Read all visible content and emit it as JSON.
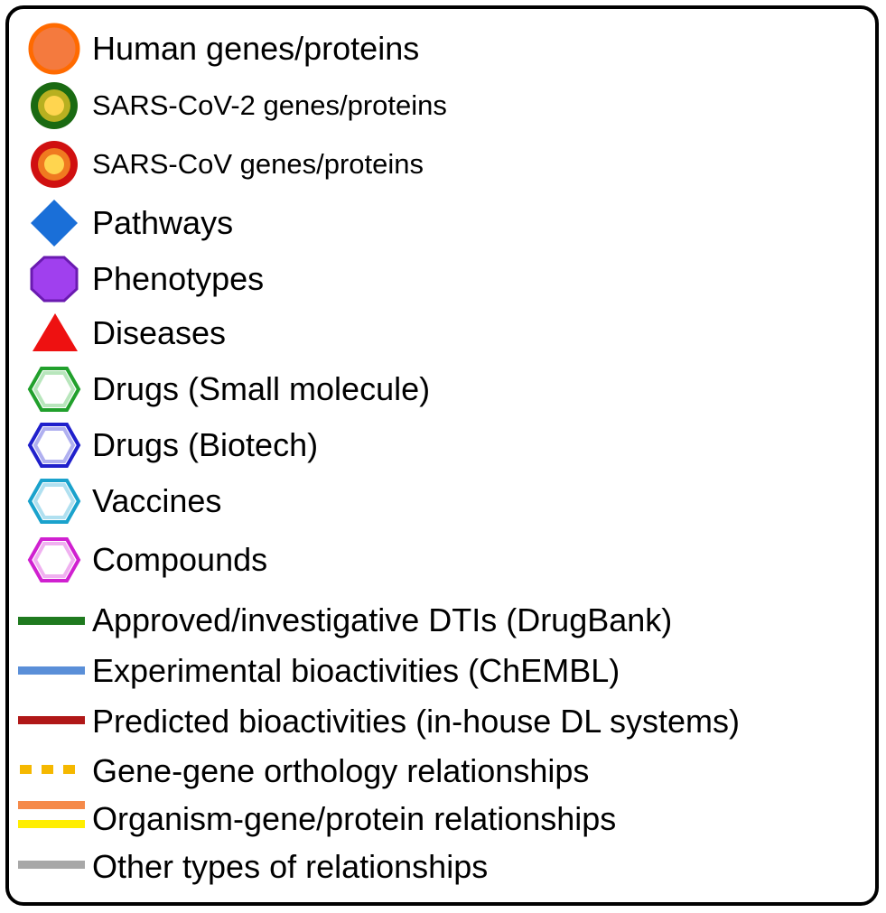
{
  "legend": {
    "nodes": [
      {
        "label": "Human genes/proteins",
        "icon": "orange-circle-icon",
        "colors": {
          "fill": "#f47a3e",
          "stroke": "#ff6a00"
        }
      },
      {
        "label": "SARS-CoV-2 genes/proteins",
        "icon": "green-ring-circle-icon",
        "colors": {
          "outer": "#1a6a12",
          "mid": "#b8b020",
          "inner": "#ffd54f"
        }
      },
      {
        "label": "SARS-CoV genes/proteins",
        "icon": "red-ring-circle-icon",
        "colors": {
          "outer": "#d01010",
          "mid": "#f07a20",
          "inner": "#ffd54f"
        }
      },
      {
        "label": "Pathways",
        "icon": "blue-diamond-icon",
        "colors": {
          "fill": "#1a6fd8"
        }
      },
      {
        "label": "Phenotypes",
        "icon": "purple-octagon-icon",
        "colors": {
          "fill": "#a040ee",
          "stroke": "#6a1ab0"
        }
      },
      {
        "label": "Diseases",
        "icon": "red-triangle-icon",
        "colors": {
          "fill": "#ee1111"
        }
      },
      {
        "label": "Drugs (Small molecule)",
        "icon": "green-hexagon-outline-icon",
        "colors": {
          "stroke": "#21a02c",
          "inner": "#b8e6bc"
        }
      },
      {
        "label": "Drugs (Biotech)",
        "icon": "blue-hexagon-outline-icon",
        "colors": {
          "stroke": "#2020cc",
          "inner": "#b0b0f0"
        }
      },
      {
        "label": "Vaccines",
        "icon": "cyan-hexagon-outline-icon",
        "colors": {
          "stroke": "#1aa2cc",
          "inner": "#b0e0f0"
        }
      },
      {
        "label": "Compounds",
        "icon": "magenta-hexagon-outline-icon",
        "colors": {
          "stroke": "#d020d0",
          "inner": "#f0b0f0"
        }
      }
    ],
    "edges": [
      {
        "label": "Approved/investigative DTIs (DrugBank)",
        "icon": "green-line-icon",
        "colors": {
          "line": "#1f7a1f"
        }
      },
      {
        "label": "Experimental bioactivities (ChEMBL)",
        "icon": "blue-line-icon",
        "colors": {
          "line": "#5a8fd8"
        }
      },
      {
        "label": "Predicted bioactivities (in-house DL systems)",
        "icon": "dark-red-line-icon",
        "colors": {
          "line": "#b01818"
        }
      },
      {
        "label": "Gene-gene orthology relationships",
        "icon": "orange-dashed-line-icon",
        "colors": {
          "line": "#f5b800"
        }
      },
      {
        "label": "Organism-gene/protein relationships",
        "icon": "orange-yellow-double-line-icon",
        "colors": {
          "top": "#f58a4a",
          "bottom": "#ffee00"
        }
      },
      {
        "label": "Other types of relationships",
        "icon": "gray-line-icon",
        "colors": {
          "line": "#a8a8a8"
        }
      }
    ]
  }
}
